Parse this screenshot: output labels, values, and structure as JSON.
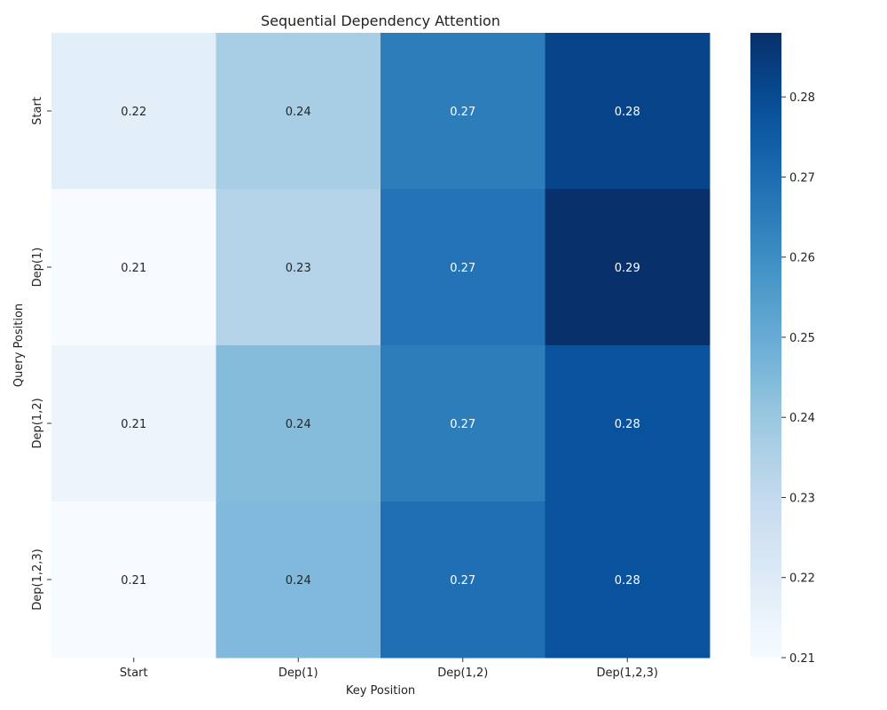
{
  "chart_data": {
    "type": "heatmap",
    "title": "Sequential Dependency Attention",
    "xlabel": "Key Position",
    "ylabel": "Query Position",
    "x_categories": [
      "Start",
      "Dep(1)",
      "Dep(1,2)",
      "Dep(1,2,3)"
    ],
    "y_categories": [
      "Start",
      "Dep(1)",
      "Dep(1,2)",
      "Dep(1,2,3)"
    ],
    "values": [
      [
        0.218,
        0.237,
        0.265,
        0.282
      ],
      [
        0.21,
        0.234,
        0.268,
        0.288
      ],
      [
        0.214,
        0.244,
        0.265,
        0.278
      ],
      [
        0.21,
        0.245,
        0.269,
        0.278
      ]
    ],
    "value_labels": [
      [
        "0.22",
        "0.24",
        "0.27",
        "0.28"
      ],
      [
        "0.21",
        "0.23",
        "0.27",
        "0.29"
      ],
      [
        "0.21",
        "0.24",
        "0.27",
        "0.28"
      ],
      [
        "0.21",
        "0.24",
        "0.27",
        "0.28"
      ]
    ],
    "colormap": "Blues",
    "colorbar": {
      "range": [
        0.21,
        0.288
      ],
      "ticks": [
        0.21,
        0.22,
        0.23,
        0.24,
        0.25,
        0.26,
        0.27,
        0.28
      ],
      "tick_labels": [
        "0.21",
        "0.22",
        "0.23",
        "0.24",
        "0.25",
        "0.26",
        "0.27",
        "0.28"
      ]
    },
    "grid": false
  }
}
